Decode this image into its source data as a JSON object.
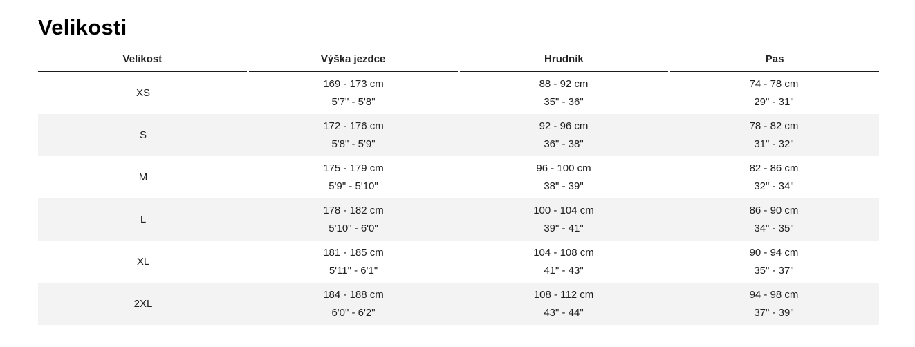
{
  "page": {
    "title": "Velikosti"
  },
  "colors": {
    "text": "#212121",
    "title": "#000000",
    "header_border": "#1c1c1c",
    "row_alt_bg": "#f3f3f3"
  },
  "table": {
    "columns": [
      "Velikost",
      "Výška jezdce",
      "Hrudník",
      "Pas"
    ],
    "rows": [
      {
        "size": "XS",
        "height_cm": "169 - 173 cm",
        "height_in": "5'7\" - 5'8\"",
        "chest_cm": "88 - 92 cm",
        "chest_in": "35\" - 36\"",
        "waist_cm": "74 - 78 cm",
        "waist_in": "29\" - 31\""
      },
      {
        "size": "S",
        "height_cm": "172 - 176 cm",
        "height_in": "5'8\" - 5'9\"",
        "chest_cm": "92 - 96 cm",
        "chest_in": "36\" - 38\"",
        "waist_cm": "78 - 82 cm",
        "waist_in": "31\" - 32\""
      },
      {
        "size": "M",
        "height_cm": "175 - 179 cm",
        "height_in": "5'9\" - 5'10\"",
        "chest_cm": "96 - 100 cm",
        "chest_in": "38\" - 39\"",
        "waist_cm": "82 - 86 cm",
        "waist_in": "32\" - 34\""
      },
      {
        "size": "L",
        "height_cm": "178 - 182 cm",
        "height_in": "5'10\" - 6'0\"",
        "chest_cm": "100 - 104 cm",
        "chest_in": "39\" - 41\"",
        "waist_cm": "86 - 90 cm",
        "waist_in": "34\" - 35\""
      },
      {
        "size": "XL",
        "height_cm": "181 - 185 cm",
        "height_in": "5'11\" - 6'1\"",
        "chest_cm": "104 - 108 cm",
        "chest_in": "41\" - 43\"",
        "waist_cm": "90 - 94 cm",
        "waist_in": "35\" - 37\""
      },
      {
        "size": "2XL",
        "height_cm": "184 - 188 cm",
        "height_in": "6'0\" - 6'2\"",
        "chest_cm": "108 - 112 cm",
        "chest_in": "43\" - 44\"",
        "waist_cm": "94 - 98 cm",
        "waist_in": "37\" - 39\""
      }
    ]
  }
}
